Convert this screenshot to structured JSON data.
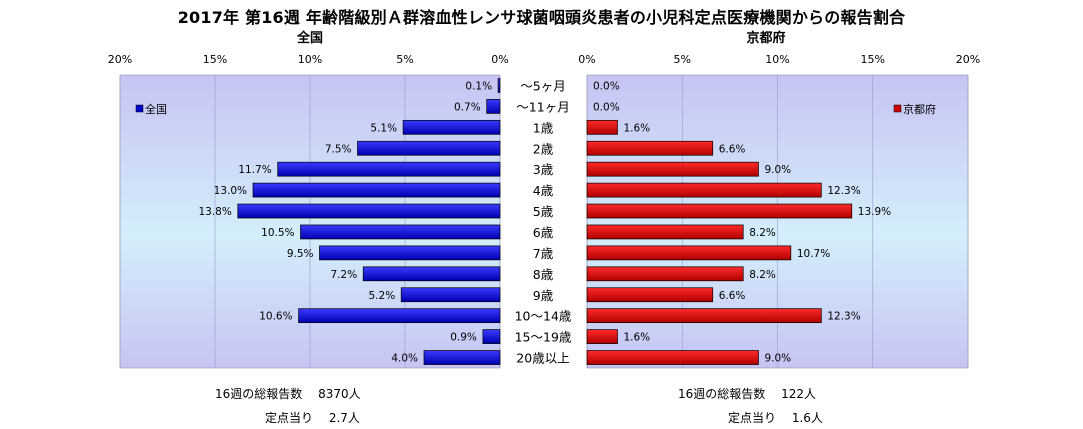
{
  "title": "2017年 第16週 年齢階級別Ａ群溶血性レンサ球菌咽頭炎患者の小児科定点医療機関からの報告割合",
  "chart_data": [
    {
      "type": "bar",
      "title": "全国",
      "legend": "全国",
      "legend_position": "left",
      "color": "#0000cc",
      "xlim": [
        0,
        20
      ],
      "ticks": [
        "20%",
        "15%",
        "10%",
        "5%",
        "0%"
      ],
      "tick_values": [
        20,
        15,
        10,
        5,
        0
      ],
      "categories": [
        "～5ヶ月",
        "～11ヶ月",
        "1歳",
        "2歳",
        "3歳",
        "4歳",
        "5歳",
        "6歳",
        "7歳",
        "8歳",
        "9歳",
        "10～14歳",
        "15～19歳",
        "20歳以上"
      ],
      "values": [
        0.1,
        0.7,
        5.1,
        7.5,
        11.7,
        13.0,
        13.8,
        10.5,
        9.5,
        7.2,
        5.2,
        10.6,
        0.9,
        4.0
      ],
      "value_labels": [
        "0.1%",
        "0.7%",
        "5.1%",
        "7.5%",
        "11.7%",
        "13.0%",
        "13.8%",
        "10.5%",
        "9.5%",
        "7.2%",
        "5.2%",
        "10.6%",
        "0.9%",
        "4.0%"
      ]
    },
    {
      "type": "bar",
      "title": "京都府",
      "legend": "京都府",
      "legend_position": "right",
      "color": "#cc0000",
      "xlim": [
        0,
        20
      ],
      "ticks": [
        "0%",
        "5%",
        "10%",
        "15%",
        "20%"
      ],
      "tick_values": [
        0,
        5,
        10,
        15,
        20
      ],
      "categories": [
        "～5ヶ月",
        "～11ヶ月",
        "1歳",
        "2歳",
        "3歳",
        "4歳",
        "5歳",
        "6歳",
        "7歳",
        "8歳",
        "9歳",
        "10～14歳",
        "15～19歳",
        "20歳以上"
      ],
      "values": [
        0.0,
        0.0,
        1.6,
        6.6,
        9.0,
        12.3,
        13.9,
        8.2,
        10.7,
        8.2,
        6.6,
        12.3,
        1.6,
        9.0
      ],
      "value_labels": [
        "0.0%",
        "0.0%",
        "1.6%",
        "6.6%",
        "9.0%",
        "12.3%",
        "13.9%",
        "8.2%",
        "10.7%",
        "8.2%",
        "6.6%",
        "12.3%",
        "1.6%",
        "9.0%"
      ]
    }
  ],
  "footer": {
    "left_total": "16週の総報告数　 8370人",
    "left_per": "定点当り　 2.7人",
    "right_total": "16週の総報告数　 122人",
    "right_per": "定点当り　 1.6人"
  }
}
